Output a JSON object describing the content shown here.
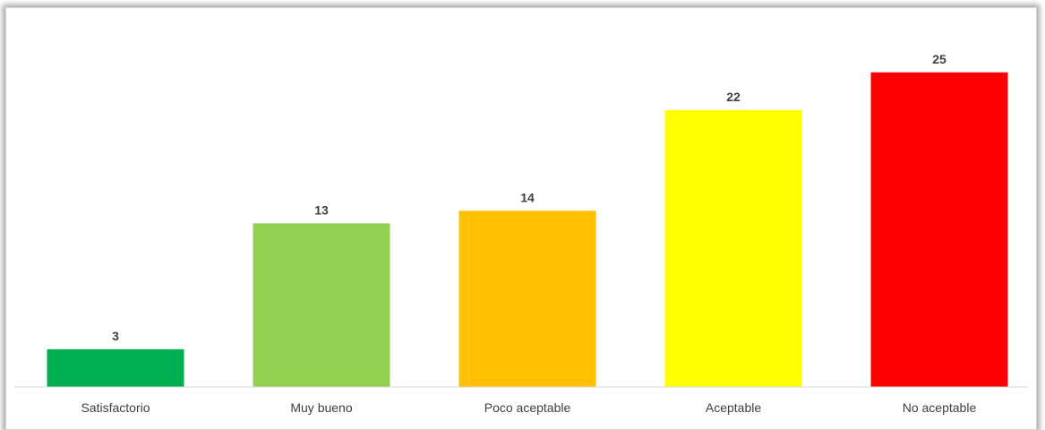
{
  "chart_data": {
    "type": "bar",
    "title": "",
    "xlabel": "",
    "ylabel": "",
    "categories": [
      "Satisfactorio",
      "Muy bueno",
      "Poco aceptable",
      "Aceptable",
      "No aceptable"
    ],
    "values": [
      3,
      13,
      14,
      22,
      25
    ],
    "colors": [
      "#00B050",
      "#92D050",
      "#FFC000",
      "#FFFF00",
      "#FF0000"
    ],
    "ylim": [
      0,
      25
    ],
    "grid": false,
    "legend": "none"
  }
}
